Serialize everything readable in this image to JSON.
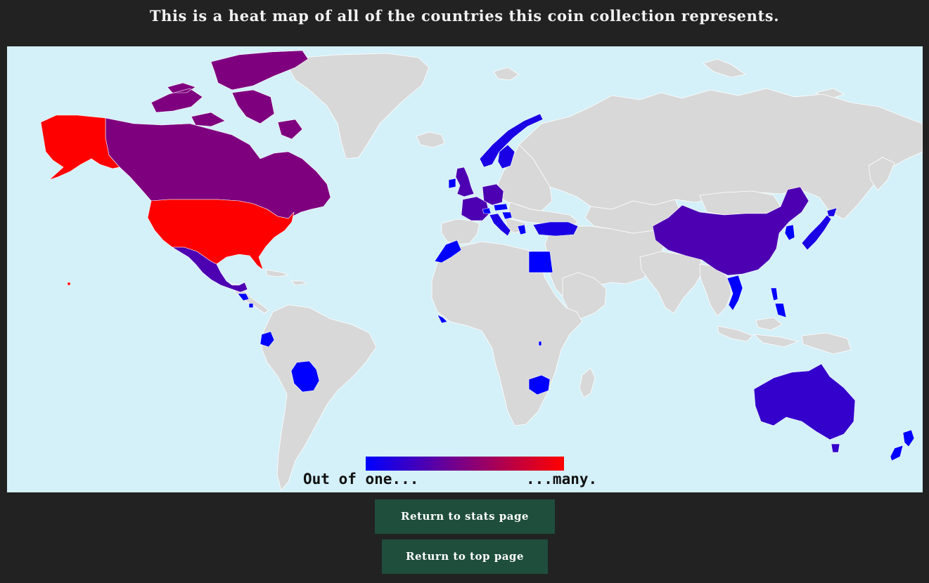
{
  "page": {
    "title": "This is a heat map of all of the countries this coin collection represents."
  },
  "map": {
    "projection": "world",
    "ocean_color": "#d4f0f8",
    "no_data_color": "#d8d8d8",
    "border_color": "#ffffff",
    "color_scale": {
      "low_color": "#0000ff",
      "high_color": "#ff0000",
      "min_label": "Out of one...",
      "max_label": "...many."
    },
    "countries": [
      {
        "name": "United States",
        "level": 1.0,
        "color": "#ff0000"
      },
      {
        "name": "Alaska (United States)",
        "level": 1.0,
        "color": "#ff0000"
      },
      {
        "name": "Canada",
        "level": 0.5,
        "color": "#7f007f"
      },
      {
        "name": "Mexico",
        "level": 0.3,
        "color": "#4c00b2"
      },
      {
        "name": "Guatemala",
        "level": 0.0,
        "color": "#0000ff"
      },
      {
        "name": "Costa Rica",
        "level": 0.0,
        "color": "#0000ff"
      },
      {
        "name": "Ecuador",
        "level": 0.0,
        "color": "#0000ff"
      },
      {
        "name": "Bolivia",
        "level": 0.0,
        "color": "#0000ff"
      },
      {
        "name": "United Kingdom",
        "level": 0.3,
        "color": "#4c00b2"
      },
      {
        "name": "Ireland",
        "level": 0.0,
        "color": "#0000ff"
      },
      {
        "name": "France",
        "level": 0.3,
        "color": "#4c00b2"
      },
      {
        "name": "Germany",
        "level": 0.3,
        "color": "#4c00b2"
      },
      {
        "name": "Norway",
        "level": 0.1,
        "color": "#1900e5"
      },
      {
        "name": "Sweden",
        "level": 0.1,
        "color": "#1900e5"
      },
      {
        "name": "Switzerland",
        "level": 0.0,
        "color": "#0000ff"
      },
      {
        "name": "Austria",
        "level": 0.0,
        "color": "#0000ff"
      },
      {
        "name": "Italy",
        "level": 0.1,
        "color": "#1900e5"
      },
      {
        "name": "Croatia",
        "level": 0.0,
        "color": "#0000ff"
      },
      {
        "name": "Greece",
        "level": 0.0,
        "color": "#0000ff"
      },
      {
        "name": "Turkey",
        "level": 0.1,
        "color": "#1900e5"
      },
      {
        "name": "Morocco",
        "level": 0.0,
        "color": "#0000ff"
      },
      {
        "name": "Egypt",
        "level": 0.0,
        "color": "#0000ff"
      },
      {
        "name": "Liberia",
        "level": 0.0,
        "color": "#0000ff"
      },
      {
        "name": "Rwanda",
        "level": 0.0,
        "color": "#0000ff"
      },
      {
        "name": "Zimbabwe",
        "level": 0.0,
        "color": "#0000ff"
      },
      {
        "name": "China",
        "level": 0.3,
        "color": "#4c00b2"
      },
      {
        "name": "South Korea",
        "level": 0.0,
        "color": "#0000ff"
      },
      {
        "name": "Japan",
        "level": 0.1,
        "color": "#1900e5"
      },
      {
        "name": "Vietnam",
        "level": 0.0,
        "color": "#0000ff"
      },
      {
        "name": "Philippines",
        "level": 0.0,
        "color": "#0000ff"
      },
      {
        "name": "Australia",
        "level": 0.2,
        "color": "#3300cc"
      },
      {
        "name": "New Zealand",
        "level": 0.0,
        "color": "#0000ff"
      }
    ]
  },
  "nav": {
    "stats_label": "Return to stats page",
    "top_label": "Return to top page"
  }
}
